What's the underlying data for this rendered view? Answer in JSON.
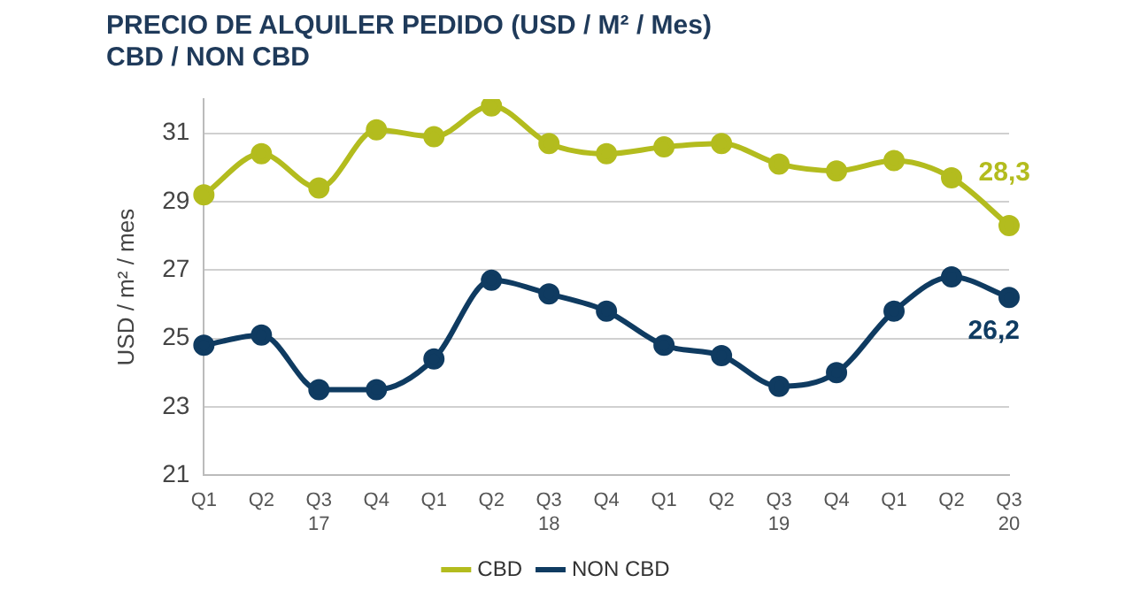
{
  "chart_data": {
    "type": "line",
    "title": "PRECIO DE ALQUILER PEDIDO (USD / M² / Mes)\nCBD / NON CBD",
    "ylabel": "USD / m² / mes",
    "categories": [
      "Q1",
      "Q2",
      "Q3\n17",
      "Q4",
      "Q1",
      "Q2",
      "Q3\n18",
      "Q4",
      "Q1",
      "Q2",
      "Q3\n19",
      "Q4",
      "Q1",
      "Q2",
      "Q3\n20"
    ],
    "series": [
      {
        "name": "CBD",
        "color": "#b3bc1e",
        "values": [
          29.2,
          30.4,
          29.4,
          31.1,
          30.9,
          31.8,
          30.7,
          30.4,
          30.6,
          30.7,
          30.1,
          29.9,
          30.2,
          29.7,
          28.3
        ],
        "value_labels": [
          null,
          null,
          null,
          null,
          null,
          null,
          null,
          null,
          null,
          null,
          null,
          null,
          null,
          null,
          "28,3"
        ]
      },
      {
        "name": "NON CBD",
        "color": "#0f3b61",
        "values": [
          24.8,
          25.1,
          23.5,
          23.5,
          24.4,
          26.7,
          26.3,
          25.8,
          24.8,
          24.5,
          23.6,
          24.0,
          25.8,
          26.8,
          26.2
        ],
        "value_labels": [
          null,
          null,
          null,
          null,
          null,
          null,
          null,
          null,
          null,
          null,
          null,
          null,
          null,
          null,
          "26,2"
        ]
      }
    ],
    "ylim": [
      21,
      32
    ],
    "yticks": [
      21,
      23,
      25,
      27,
      29,
      31
    ],
    "grid": "y",
    "legend": "bottom",
    "marker": "circle",
    "line_style": "solid"
  }
}
